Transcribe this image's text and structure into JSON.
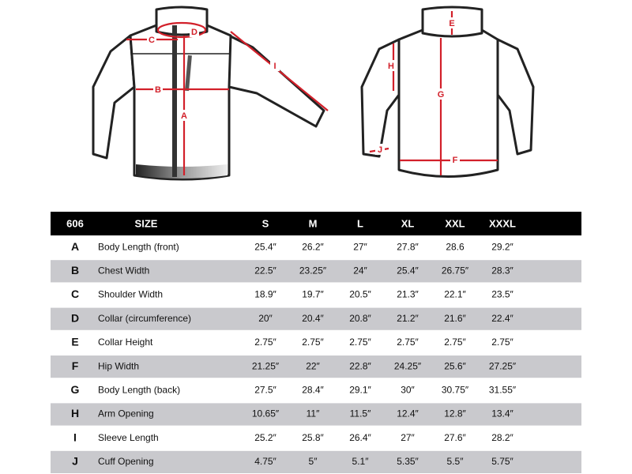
{
  "diagram": {
    "front_labels": [
      "C",
      "D",
      "I",
      "B",
      "A"
    ],
    "back_labels": [
      "E",
      "H",
      "G",
      "J",
      "F"
    ]
  },
  "table": {
    "header": [
      "606",
      "SIZE",
      "S",
      "M",
      "L",
      "XL",
      "XXL",
      "XXXL"
    ],
    "rows": [
      [
        "A",
        "Body Length (front)",
        "25.4″",
        "26.2″",
        "27″",
        "27.8″",
        "28.6",
        "29.2″"
      ],
      [
        "B",
        "Chest Width",
        "22.5″",
        "23.25″",
        "24″",
        "25.4″",
        "26.75″",
        "28.3″"
      ],
      [
        "C",
        "Shoulder Width",
        "18.9″",
        "19.7″",
        "20.5″",
        "21.3″",
        "22.1″",
        "23.5″"
      ],
      [
        "D",
        "Collar (circumference)",
        "20″",
        "20.4″",
        "20.8″",
        "21.2″",
        "21.6″",
        "22.4″"
      ],
      [
        "E",
        "Collar Height",
        "2.75″",
        "2.75″",
        "2.75″",
        "2.75″",
        "2.75″",
        "2.75″"
      ],
      [
        "F",
        "Hip Width",
        "21.25″",
        "22″",
        "22.8″",
        "24.25″",
        "25.6″",
        "27.25″"
      ],
      [
        "G",
        "Body Length (back)",
        "27.5″",
        "28.4″",
        "29.1″",
        "30″",
        "30.75″",
        "31.55″"
      ],
      [
        "H",
        "Arm Opening",
        "10.65″",
        "11″",
        "11.5″",
        "12.4″",
        "12.8″",
        "13.4″"
      ],
      [
        "I",
        "Sleeve Length",
        "25.2″",
        "25.8″",
        "26.4″",
        "27″",
        "27.6″",
        "28.2″"
      ],
      [
        "J",
        "Cuff Opening",
        "4.75″",
        "5″",
        "5.1″",
        "5.35″",
        "5.5″",
        "5.75″"
      ]
    ]
  }
}
